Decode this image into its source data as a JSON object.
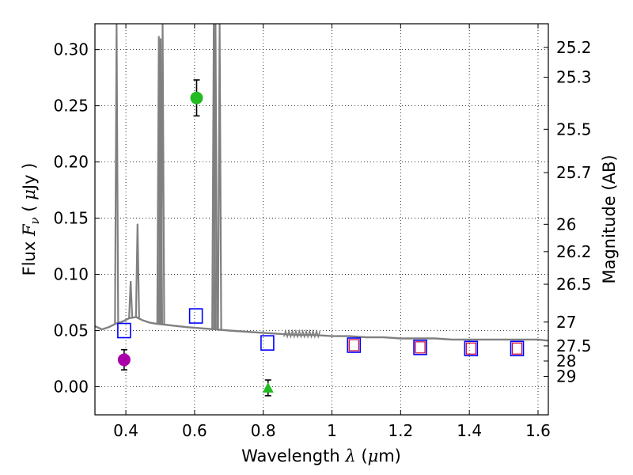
{
  "chart_data": {
    "type": "scatter",
    "xlabel": {
      "text": "Wavelength",
      "symbol": "λ",
      "unit_open": " (",
      "unit_mu": "μ",
      "unit_rest": "m)"
    },
    "ylabel": {
      "text": "Flux",
      "symbol": "F",
      "subscript": "ν",
      "unit_open": "(",
      "unit_mu": "μ",
      "unit_rest": "Jy )"
    },
    "y2label": "Magnitude (AB)",
    "xlim": [
      0.31,
      1.63
    ],
    "ylim": [
      -0.025,
      0.323
    ],
    "grid": true,
    "xticks": [
      0.4,
      0.6,
      0.8,
      1.0,
      1.2,
      1.4,
      1.6
    ],
    "xtick_labels": [
      "0.4",
      "0.6",
      "0.8",
      "1",
      "1.2",
      "1.4",
      "1.6"
    ],
    "yticks": [
      0.0,
      0.05,
      0.1,
      0.15,
      0.2,
      0.25,
      0.3
    ],
    "ytick_labels": [
      "0.00",
      "0.05",
      "0.10",
      "0.15",
      "0.20",
      "0.25",
      "0.30"
    ],
    "mag_ticks": [
      25.2,
      25.3,
      25.5,
      25.7,
      26.0,
      26.2,
      26.5,
      27.0,
      27.5,
      28.0,
      29.0
    ],
    "mag_tick_labels": [
      "25.2",
      "25.3",
      "25.5",
      "25.7",
      "26",
      "26.2",
      "26.5",
      "27",
      "27.5",
      "28",
      "29"
    ],
    "template_color": "#808080",
    "template_continuum": [
      [
        0.31,
        0.054
      ],
      [
        0.33,
        0.051
      ],
      [
        0.35,
        0.053
      ],
      [
        0.37,
        0.056
      ],
      [
        0.39,
        0.058
      ],
      [
        0.41,
        0.061
      ],
      [
        0.43,
        0.062
      ],
      [
        0.45,
        0.059
      ],
      [
        0.47,
        0.057
      ],
      [
        0.49,
        0.056
      ],
      [
        0.52,
        0.055
      ],
      [
        0.55,
        0.054
      ],
      [
        0.58,
        0.053
      ],
      [
        0.62,
        0.052
      ],
      [
        0.66,
        0.051
      ],
      [
        0.7,
        0.05
      ],
      [
        0.75,
        0.049
      ],
      [
        0.8,
        0.048
      ],
      [
        0.85,
        0.047
      ],
      [
        0.9,
        0.046
      ],
      [
        0.95,
        0.046
      ],
      [
        1.0,
        0.045
      ],
      [
        1.05,
        0.045
      ],
      [
        1.1,
        0.044
      ],
      [
        1.15,
        0.044
      ],
      [
        1.2,
        0.043
      ],
      [
        1.25,
        0.043
      ],
      [
        1.3,
        0.043
      ],
      [
        1.35,
        0.042
      ],
      [
        1.4,
        0.042
      ],
      [
        1.45,
        0.042
      ],
      [
        1.5,
        0.042
      ],
      [
        1.55,
        0.042
      ],
      [
        1.6,
        0.042
      ],
      [
        1.63,
        0.041
      ]
    ],
    "emission_lines": [
      {
        "x": 0.373,
        "peak": 0.4
      },
      {
        "x": 0.414,
        "peak": 0.094
      },
      {
        "x": 0.434,
        "peak": 0.145
      },
      {
        "x": 0.496,
        "peak": 0.312
      },
      {
        "x": 0.501,
        "peak": 0.31
      },
      {
        "x": 0.507,
        "peak": 0.4
      },
      {
        "x": 0.656,
        "peak": 0.4
      },
      {
        "x": 0.661,
        "peak": 0.4
      },
      {
        "x": 0.673,
        "peak": 0.4
      }
    ],
    "model_points": [
      {
        "x": 0.395,
        "y": 0.05,
        "color": "#0000ff"
      },
      {
        "x": 0.604,
        "y": 0.063,
        "color": "#0000ff"
      },
      {
        "x": 0.812,
        "y": 0.039,
        "color": "#0000ff"
      },
      {
        "x": 1.064,
        "y": 0.037,
        "color": "#0000ff"
      },
      {
        "x": 1.257,
        "y": 0.035,
        "color": "#0000ff"
      },
      {
        "x": 1.405,
        "y": 0.034,
        "color": "#0000ff"
      },
      {
        "x": 1.539,
        "y": 0.034,
        "color": "#0000ff"
      }
    ],
    "model_points_inner": [
      {
        "x": 1.064,
        "y": 0.037,
        "color": "#cc0033"
      },
      {
        "x": 1.257,
        "y": 0.035,
        "color": "#cc0033"
      },
      {
        "x": 1.405,
        "y": 0.034,
        "color": "#cc0033"
      },
      {
        "x": 1.539,
        "y": 0.034,
        "color": "#cc0033"
      }
    ],
    "observed": [
      {
        "x": 0.395,
        "y": 0.024,
        "yerr": 0.009,
        "marker": "circle",
        "color": "#aa00aa"
      },
      {
        "x": 0.606,
        "y": 0.257,
        "yerr": 0.016,
        "marker": "circle",
        "color": "#22bb22"
      },
      {
        "x": 0.814,
        "y": -0.001,
        "yerr": 0.007,
        "marker": "triangle",
        "color": "#22bb22"
      }
    ]
  }
}
